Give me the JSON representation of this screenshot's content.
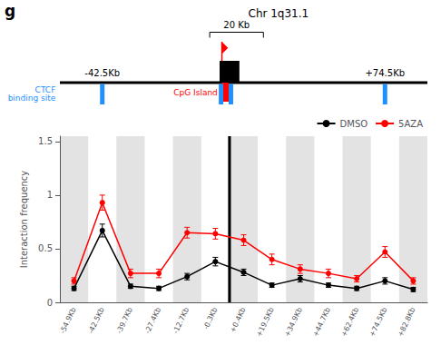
{
  "chart_data": {
    "type": "line",
    "title": "Chr 1q31.1",
    "annotations": [
      "g",
      "-42.5Kb",
      "+74.5Kb",
      "20 Kb",
      "CpG Island",
      "CTCF\nbinding site"
    ],
    "categories": [
      "-54.9Kb",
      "-42.5Kb",
      "-39.7Kb",
      "-27.4Kb",
      "-12.7Kb",
      "-0.3Kb",
      "+0.4Kb",
      "+19.5Kb",
      "+34.9Kb",
      "+44.7Kb",
      "+62.4Kb",
      "+74.5Kb",
      "+82.8Kb"
    ],
    "series": [
      {
        "name": "DMSO",
        "color": "#000000",
        "values": [
          0.13,
          0.67,
          0.15,
          0.13,
          0.24,
          0.38,
          0.28,
          0.16,
          0.22,
          0.16,
          0.13,
          0.2,
          0.12
        ],
        "errors": [
          0.02,
          0.06,
          0.02,
          0.02,
          0.03,
          0.04,
          0.03,
          0.02,
          0.03,
          0.02,
          0.02,
          0.03,
          0.02
        ]
      },
      {
        "name": "5AZA",
        "color": "#ff0000",
        "values": [
          0.2,
          0.93,
          0.27,
          0.27,
          0.65,
          0.64,
          0.58,
          0.4,
          0.31,
          0.27,
          0.22,
          0.47,
          0.2
        ],
        "errors": [
          0.03,
          0.07,
          0.04,
          0.04,
          0.05,
          0.05,
          0.05,
          0.05,
          0.04,
          0.04,
          0.03,
          0.05,
          0.03
        ]
      }
    ],
    "ylabel": "Interaction frequency",
    "ylim": [
      0,
      1.55
    ],
    "yticks": [
      0,
      0.5,
      1,
      1.5
    ],
    "grid": false,
    "legend": "upper right",
    "marker": "circle"
  }
}
